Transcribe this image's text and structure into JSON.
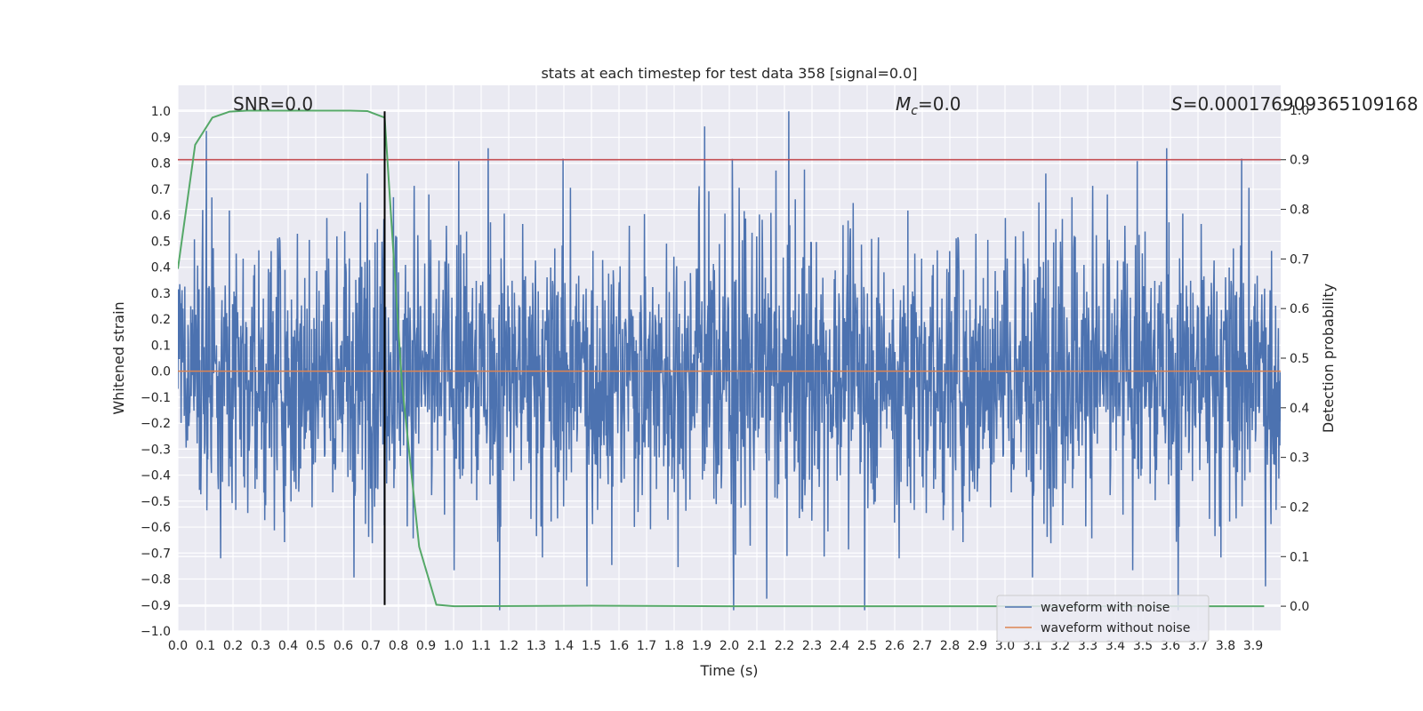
{
  "chart_data": {
    "type": "line",
    "title": "stats at each timestep for test data 358 [signal=0.0]",
    "xlabel": "Time (s)",
    "ylabel_left": "Whitened strain",
    "ylabel_right": "Detection probability",
    "xlim": [
      0.0,
      4.0
    ],
    "ylim_left": [
      -1.0,
      1.1
    ],
    "ylim_right": [
      -0.05,
      1.05
    ],
    "x_ticks": [
      "0.0",
      "0.1",
      "0.2",
      "0.3",
      "0.4",
      "0.5",
      "0.6",
      "0.7",
      "0.8",
      "0.9",
      "1.0",
      "1.1",
      "1.2",
      "1.3",
      "1.4",
      "1.5",
      "1.6",
      "1.7",
      "1.8",
      "1.9",
      "2.0",
      "2.1",
      "2.2",
      "2.3",
      "2.4",
      "2.5",
      "2.6",
      "2.7",
      "2.8",
      "2.9",
      "3.0",
      "3.1",
      "3.2",
      "3.3",
      "3.4",
      "3.5",
      "3.6",
      "3.7",
      "3.8",
      "3.9"
    ],
    "y_left_ticks": [
      "1.0",
      "0.9",
      "0.8",
      "0.7",
      "0.6",
      "0.5",
      "0.4",
      "0.3",
      "0.2",
      "0.1",
      "0.0",
      "−0.1",
      "−0.2",
      "−0.3",
      "−0.4",
      "−0.5",
      "−0.6",
      "−0.7",
      "−0.8",
      "−0.9",
      "−1.0"
    ],
    "y_right_ticks": [
      "1.0",
      "0.9",
      "0.8",
      "0.7",
      "0.6",
      "0.5",
      "0.4",
      "0.3",
      "0.2",
      "0.1",
      "0.0"
    ],
    "annotations": {
      "snr": "SNR=0.0",
      "mc": "=0.0",
      "mc_symbol": "M",
      "mc_sub": "c",
      "s_value": "=0.000176909365109168",
      "s_symbol": "S"
    },
    "threshold": 0.9,
    "marker_time": 0.75,
    "series": [
      {
        "name": "waveform with noise",
        "axis": "left",
        "color": "#4c72b0",
        "description": "dense noise trace, roughly within -0.9 to 1.0"
      },
      {
        "name": "waveform without noise",
        "axis": "left",
        "color": "#dd8452",
        "x": [
          0.0,
          4.0
        ],
        "values": [
          0.0,
          0.0
        ]
      },
      {
        "name": "detection probability",
        "axis": "right",
        "color": "#55a868",
        "x": [
          0.0,
          0.0625,
          0.125,
          0.1875,
          0.25,
          0.3125,
          0.375,
          0.4375,
          0.5,
          0.5625,
          0.625,
          0.6875,
          0.75,
          0.8125,
          0.875,
          0.9375,
          1.0,
          1.5,
          2.0,
          2.5,
          3.0,
          3.5,
          3.94
        ],
        "values": [
          0.68,
          0.93,
          0.985,
          0.997,
          0.999,
          0.999,
          0.999,
          0.999,
          0.999,
          0.999,
          0.999,
          0.998,
          0.985,
          0.45,
          0.12,
          0.003,
          0.0,
          0.001,
          0.0,
          0.0,
          0.0,
          0.0,
          0.0
        ]
      }
    ],
    "legend": {
      "position": "lower right",
      "entries": [
        {
          "label": "waveform with noise",
          "color": "#4c72b0"
        },
        {
          "label": "waveform without noise",
          "color": "#dd8452"
        }
      ]
    },
    "colors": {
      "background": "#eaeaf2",
      "grid": "#ffffff",
      "threshold": "#c44e52",
      "marker": "#000000"
    }
  }
}
